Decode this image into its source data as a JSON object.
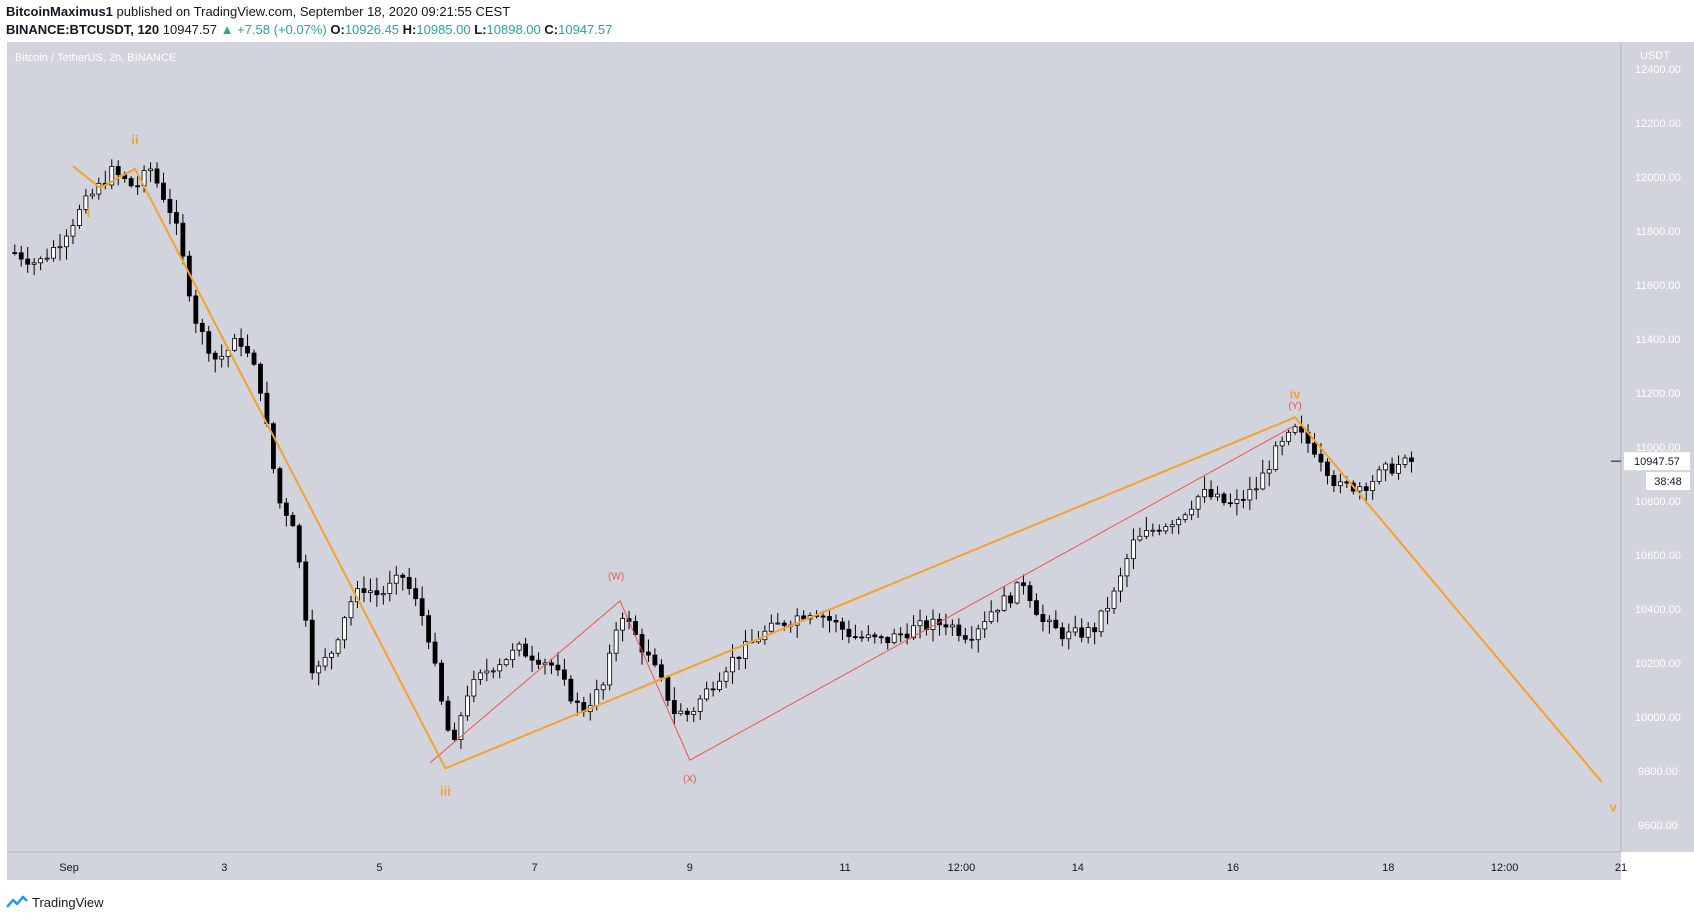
{
  "header": {
    "author": "BitcoinMaximus1",
    "published_text": "published on TradingView.com, September 18, 2020 09:21:55 CEST",
    "symbol": "BINANCE:BTCUSDT, 120",
    "last": "10947.57",
    "change": "▲ +7.58 (+0.07%)",
    "o_label": "O:",
    "o": "10926.45",
    "h_label": "H:",
    "h": "10985.00",
    "l_label": "L:",
    "l": "10898.00",
    "c_label": "C:",
    "c": "10947.57"
  },
  "footer": {
    "brand": "TradingView",
    "icon": "tradingview-logo-icon"
  },
  "colors": {
    "background": "#d1d4dc",
    "candle_up": "#ffffff",
    "candle_down": "#000000",
    "wave_orange": "#f7a030",
    "wave_red": "#ef5350",
    "axis_text": "#ffffff"
  },
  "chart_data": {
    "type": "candlestick",
    "title": "Bitcoin / TetherUS, 2h, BINANCE",
    "ylabel": "USDT",
    "ylim": [
      9500,
      12500
    ],
    "x_range_days": [
      0.2,
      21.0
    ],
    "y_ticks": [
      "12400.00",
      "12200.00",
      "12000.00",
      "11800.00",
      "11600.00",
      "11400.00",
      "11200.00",
      "11000.00",
      "10800.00",
      "10600.00",
      "10400.00",
      "10200.00",
      "10000.00",
      "9800.00",
      "9600.00"
    ],
    "x_ticks": [
      {
        "day": 1,
        "label": "Sep"
      },
      {
        "day": 3,
        "label": "3"
      },
      {
        "day": 5,
        "label": "5"
      },
      {
        "day": 7,
        "label": "7"
      },
      {
        "day": 9,
        "label": "9"
      },
      {
        "day": 11,
        "label": "11"
      },
      {
        "day": 12.5,
        "label": "12:00"
      },
      {
        "day": 14,
        "label": "14"
      },
      {
        "day": 16,
        "label": "16"
      },
      {
        "day": 18,
        "label": "18"
      },
      {
        "day": 19.5,
        "label": "12:00"
      },
      {
        "day": 21,
        "label": "21"
      }
    ],
    "last_price": "10947.57",
    "countdown": "38:48",
    "key_points": [
      [
        0.3,
        11720
      ],
      [
        0.6,
        11680
      ],
      [
        0.85,
        11750
      ],
      [
        1.2,
        11900
      ],
      [
        1.55,
        12020
      ],
      [
        1.85,
        11960
      ],
      [
        2.05,
        12030
      ],
      [
        2.35,
        11850
      ],
      [
        2.65,
        11450
      ],
      [
        2.9,
        11320
      ],
      [
        3.2,
        11400
      ],
      [
        3.45,
        11250
      ],
      [
        3.7,
        10800
      ],
      [
        3.9,
        10720
      ],
      [
        4.15,
        10150
      ],
      [
        4.4,
        10250
      ],
      [
        4.6,
        10420
      ],
      [
        4.8,
        10480
      ],
      [
        5.0,
        10450
      ],
      [
        5.3,
        10520
      ],
      [
        5.6,
        10350
      ],
      [
        5.8,
        10050
      ],
      [
        5.95,
        9870
      ],
      [
        6.1,
        10080
      ],
      [
        6.4,
        10180
      ],
      [
        6.8,
        10250
      ],
      [
        7.2,
        10200
      ],
      [
        7.6,
        10020
      ],
      [
        7.9,
        10120
      ],
      [
        8.1,
        10400
      ],
      [
        8.3,
        10300
      ],
      [
        8.6,
        10150
      ],
      [
        8.8,
        10020
      ],
      [
        9.0,
        10010
      ],
      [
        9.2,
        10090
      ],
      [
        9.5,
        10200
      ],
      [
        9.9,
        10300
      ],
      [
        10.2,
        10350
      ],
      [
        10.6,
        10400
      ],
      [
        11.1,
        10300
      ],
      [
        11.5,
        10280
      ],
      [
        11.9,
        10330
      ],
      [
        12.3,
        10350
      ],
      [
        12.6,
        10300
      ],
      [
        12.9,
        10400
      ],
      [
        13.15,
        10450
      ],
      [
        13.3,
        10500
      ],
      [
        13.55,
        10350
      ],
      [
        13.85,
        10300
      ],
      [
        14.2,
        10320
      ],
      [
        14.5,
        10470
      ],
      [
        14.7,
        10640
      ],
      [
        15.0,
        10700
      ],
      [
        15.3,
        10740
      ],
      [
        15.6,
        10830
      ],
      [
        16.0,
        10780
      ],
      [
        16.3,
        10850
      ],
      [
        16.55,
        10980
      ],
      [
        16.8,
        11060
      ],
      [
        17.1,
        10980
      ],
      [
        17.35,
        10850
      ],
      [
        17.7,
        10860
      ],
      [
        18.0,
        10920
      ],
      [
        18.35,
        10950
      ]
    ],
    "wave_orange": [
      [
        1.05,
        12040
      ],
      [
        1.4,
        11960
      ],
      [
        1.85,
        12030
      ],
      [
        5.85,
        9810
      ],
      [
        16.8,
        11110
      ],
      [
        20.75,
        9760
      ]
    ],
    "wave_red": [
      [
        5.65,
        9830
      ],
      [
        8.1,
        10430
      ],
      [
        9.0,
        9840
      ],
      [
        16.8,
        11080
      ]
    ],
    "wave_labels": [
      {
        "text": "ii",
        "day": 1.85,
        "price": 12120,
        "color": "orange"
      },
      {
        "text": "i",
        "day": 1.25,
        "price": 11850,
        "color": "orange"
      },
      {
        "text": "iii",
        "day": 5.85,
        "price": 9710,
        "color": "orange"
      },
      {
        "text": "iv",
        "day": 16.8,
        "price": 11180,
        "color": "orange"
      },
      {
        "text": "v",
        "day": 20.9,
        "price": 9650,
        "color": "orange"
      },
      {
        "text": "(W)",
        "day": 8.05,
        "price": 10510,
        "color": "red"
      },
      {
        "text": "(X)",
        "day": 9.0,
        "price": 9760,
        "color": "red"
      },
      {
        "text": "(Y)",
        "day": 16.8,
        "price": 11140,
        "color": "red"
      }
    ]
  }
}
